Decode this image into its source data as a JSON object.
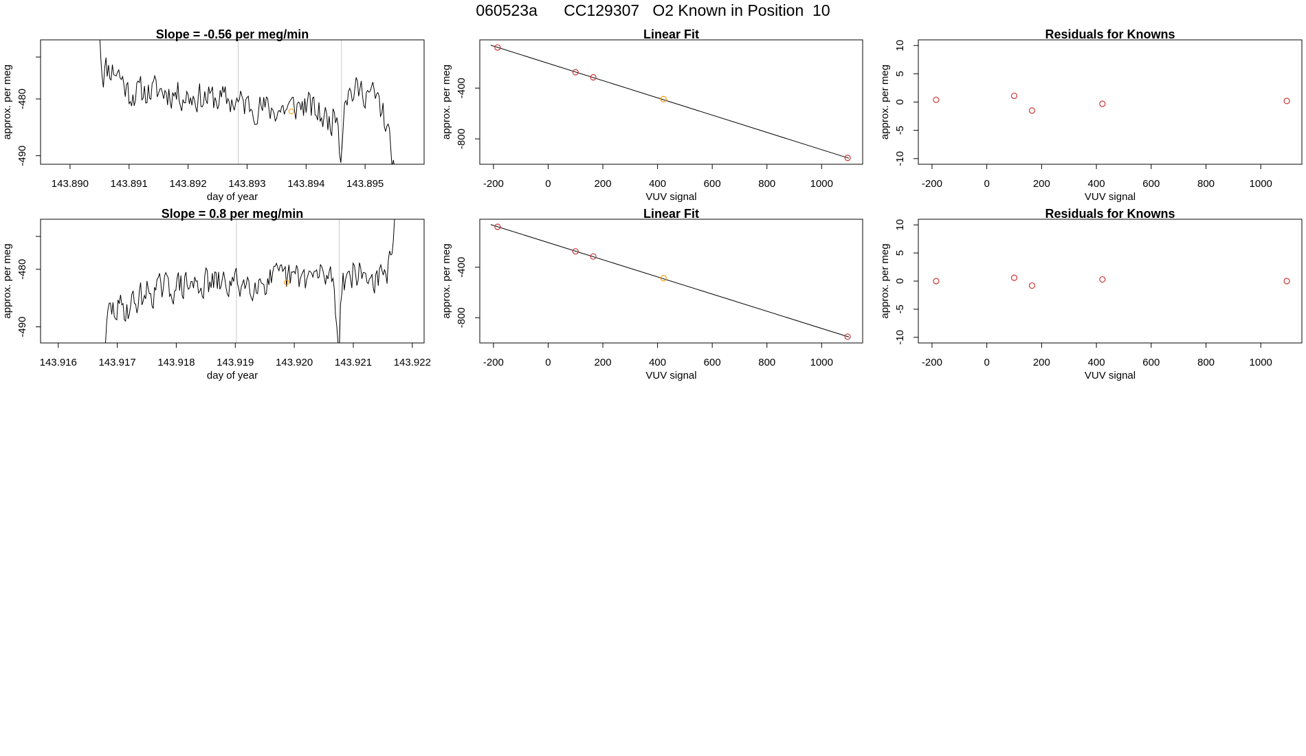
{
  "figure_title": "060523a      CC129307   O2 Known in Position  10",
  "chart_data": [
    {
      "type": "line",
      "title": "Slope =  -0.56  per meg/min",
      "xlabel": "day of year",
      "ylabel": "approx. per meg",
      "xlim": [
        143.8895,
        143.896
      ],
      "ylim": [
        -491.5,
        -469.6
      ],
      "xticks": [
        "143.890",
        "143.891",
        "143.892",
        "143.893",
        "143.894",
        "143.895"
      ],
      "xtick_values": [
        143.89,
        143.891,
        143.892,
        143.893,
        143.894,
        143.895
      ],
      "yticks": [
        "-490",
        "-480"
      ],
      "ytick_values": [
        -490,
        -480
      ],
      "vlines": [
        143.89285,
        143.8946
      ],
      "known_point": {
        "x": 143.89375,
        "y": -482.2,
        "color": "#ff9900"
      },
      "series_start": 143.8905,
      "series_end": 143.8955,
      "seed": 11,
      "waypoints": [
        [
          143.8905,
          -468
        ],
        [
          143.89055,
          -476
        ],
        [
          143.8906,
          -474.5
        ],
        [
          143.8908,
          -475
        ],
        [
          143.891,
          -479
        ],
        [
          143.8915,
          -478.5
        ],
        [
          143.892,
          -479.5
        ],
        [
          143.8925,
          -480
        ],
        [
          143.8928,
          -480.5
        ],
        [
          143.8932,
          -481.5
        ],
        [
          143.8935,
          -482
        ],
        [
          143.894,
          -481
        ],
        [
          143.8944,
          -484
        ],
        [
          143.89455,
          -482
        ],
        [
          143.89458,
          -492
        ],
        [
          143.89465,
          -479
        ],
        [
          143.895,
          -478.5
        ],
        [
          143.8952,
          -480
        ],
        [
          143.89535,
          -484
        ],
        [
          143.8954,
          -487
        ],
        [
          143.8955,
          -492
        ]
      ]
    },
    {
      "type": "scatter",
      "title": "Linear Fit",
      "xlabel": "VUV signal",
      "ylabel": "approx. per meg",
      "xlim": [
        -250,
        1150
      ],
      "ylim": [
        -1000,
        -20
      ],
      "xticks": [
        "-200",
        "0",
        "200",
        "400",
        "600",
        "800",
        "1000"
      ],
      "xtick_values": [
        -200,
        0,
        200,
        400,
        600,
        800,
        1000
      ],
      "yticks": [
        "-800",
        "-400"
      ],
      "ytick_values": [
        -800,
        -400
      ],
      "points": [
        {
          "x": -185,
          "y": -80
        },
        {
          "x": 100,
          "y": -275
        },
        {
          "x": 165,
          "y": -315
        },
        {
          "x": 422,
          "y": -487,
          "color": "#ff9900"
        },
        {
          "x": 1095,
          "y": -950
        }
      ],
      "fit_line": {
        "x": [
          -210,
          1100
        ],
        "y": [
          -62,
          -953
        ]
      },
      "point_color": "#cc3333"
    },
    {
      "type": "scatter",
      "title": "Residuals for Knowns",
      "xlabel": "VUV signal",
      "ylabel": "approx. per meg",
      "xlim": [
        -250,
        1150
      ],
      "ylim": [
        -11,
        11
      ],
      "xticks": [
        "-200",
        "0",
        "200",
        "400",
        "600",
        "800",
        "1000"
      ],
      "xtick_values": [
        -200,
        0,
        200,
        400,
        600,
        800,
        1000
      ],
      "yticks": [
        "-10",
        "-5",
        "0",
        "5",
        "10"
      ],
      "ytick_values": [
        -10,
        -5,
        0,
        5,
        10
      ],
      "points": [
        {
          "x": -185,
          "y": 0.4
        },
        {
          "x": 100,
          "y": 1.1
        },
        {
          "x": 165,
          "y": -1.5
        },
        {
          "x": 422,
          "y": -0.3
        },
        {
          "x": 1095,
          "y": 0.2
        }
      ],
      "point_color": "#cc3333"
    },
    {
      "type": "line",
      "title": "Slope =  0.8  per meg/min",
      "xlabel": "day of year",
      "ylabel": "approx. per meg",
      "xlim": [
        143.9157,
        143.9222
      ],
      "ylim": [
        -492.8,
        -471.3
      ],
      "xticks": [
        "143.916",
        "143.917",
        "143.918",
        "143.919",
        "143.920",
        "143.921",
        "143.922"
      ],
      "xtick_values": [
        143.916,
        143.917,
        143.918,
        143.919,
        143.92,
        143.921,
        143.922
      ],
      "yticks": [
        "-490",
        "-480"
      ],
      "ytick_values": [
        -490,
        -480
      ],
      "vlines": [
        143.91902,
        143.92076
      ],
      "known_point": {
        "x": 143.91987,
        "y": -482.3,
        "color": "#ff9900"
      },
      "series_start": 143.9168,
      "series_end": 143.9217,
      "seed": 29,
      "waypoints": [
        [
          143.9168,
          -493
        ],
        [
          143.91685,
          -487.5
        ],
        [
          143.9172,
          -486.5
        ],
        [
          143.9175,
          -484
        ],
        [
          143.918,
          -483
        ],
        [
          143.9185,
          -482.5
        ],
        [
          143.919,
          -482.5
        ],
        [
          143.9195,
          -482
        ],
        [
          143.92,
          -481.5
        ],
        [
          143.92065,
          -481
        ],
        [
          143.92072,
          -489
        ],
        [
          143.92076,
          -493
        ],
        [
          143.9208,
          -482
        ],
        [
          143.921,
          -480.5
        ],
        [
          143.9213,
          -481.5
        ],
        [
          143.9215,
          -482
        ],
        [
          143.9216,
          -480
        ],
        [
          143.9217,
          -471
        ]
      ]
    },
    {
      "type": "scatter",
      "title": "Linear Fit",
      "xlabel": "VUV signal",
      "ylabel": "approx. per meg",
      "xlim": [
        -250,
        1150
      ],
      "ylim": [
        -1000,
        -20
      ],
      "xticks": [
        "-200",
        "0",
        "200",
        "400",
        "600",
        "800",
        "1000"
      ],
      "xtick_values": [
        -200,
        0,
        200,
        400,
        600,
        800,
        1000
      ],
      "yticks": [
        "-800",
        "-400"
      ],
      "ytick_values": [
        -800,
        -400
      ],
      "points": [
        {
          "x": -185,
          "y": -80
        },
        {
          "x": 100,
          "y": -275
        },
        {
          "x": 165,
          "y": -315
        },
        {
          "x": 422,
          "y": -487,
          "color": "#ff9900"
        },
        {
          "x": 1095,
          "y": -950
        }
      ],
      "fit_line": {
        "x": [
          -210,
          1100
        ],
        "y": [
          -62,
          -953
        ]
      },
      "point_color": "#cc3333"
    },
    {
      "type": "scatter",
      "title": "Residuals for Knowns",
      "xlabel": "VUV signal",
      "ylabel": "approx. per meg",
      "xlim": [
        -250,
        1150
      ],
      "ylim": [
        -11,
        11
      ],
      "xticks": [
        "-200",
        "0",
        "200",
        "400",
        "600",
        "800",
        "1000"
      ],
      "xtick_values": [
        -200,
        0,
        200,
        400,
        600,
        800,
        1000
      ],
      "yticks": [
        "-10",
        "-5",
        "0",
        "5",
        "10"
      ],
      "ytick_values": [
        -10,
        -5,
        0,
        5,
        10
      ],
      "points": [
        {
          "x": -185,
          "y": 0.0
        },
        {
          "x": 100,
          "y": 0.6
        },
        {
          "x": 165,
          "y": -0.8
        },
        {
          "x": 422,
          "y": 0.3
        },
        {
          "x": 1095,
          "y": 0.0
        }
      ],
      "point_color": "#cc3333"
    }
  ]
}
